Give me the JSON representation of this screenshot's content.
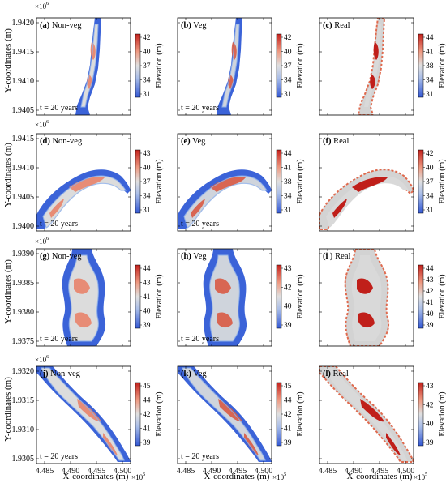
{
  "figure": {
    "y_axis_label": "Y-coordinates (m)",
    "x_axis_label": "X-coordinates (m)",
    "y_exponent": "×10",
    "y_exponent_power": "6",
    "x_exponent": "×10",
    "x_exponent_power": "5",
    "colorbar_label": "Elevation (m)",
    "time_label": "t = 20 years",
    "colors": {
      "low": "#3a62d6",
      "mid": "#d9d9d9",
      "high": "#c8251e",
      "frame": "#000000"
    }
  },
  "chart_data": [
    {
      "type": "heatmap",
      "label": "(a)",
      "label_title": "Non-veg",
      "row": 0,
      "col": 0,
      "shape": "narrow",
      "variant": 0,
      "show_time": true,
      "y_ticks": [
        "1.9420",
        "1.9415",
        "1.9410",
        "1.9405"
      ],
      "x_ticks": [],
      "colorbar_ticks": [
        "42",
        "40",
        "37",
        "34",
        "31"
      ],
      "value_range": [
        31,
        42
      ]
    },
    {
      "type": "heatmap",
      "label": "(b)",
      "label_title": "Veg",
      "row": 0,
      "col": 1,
      "shape": "narrow",
      "variant": 1,
      "show_time": true,
      "y_ticks": [],
      "x_ticks": [],
      "colorbar_ticks": [
        "42",
        "40",
        "37",
        "34",
        "31"
      ],
      "value_range": [
        31,
        42
      ]
    },
    {
      "type": "heatmap",
      "label": "(c)",
      "label_title": "Real",
      "row": 0,
      "col": 2,
      "shape": "narrow",
      "variant": 2,
      "show_time": false,
      "y_ticks": [],
      "x_ticks": [],
      "colorbar_ticks": [
        "44",
        "41",
        "38",
        "34",
        "31"
      ],
      "value_range": [
        31,
        44
      ]
    },
    {
      "type": "heatmap",
      "label": "(d)",
      "label_title": "Non-veg",
      "row": 1,
      "col": 0,
      "shape": "arc",
      "variant": 0,
      "show_time": true,
      "y_ticks": [
        "1.9415",
        "1.9410",
        "1.9405",
        "1.9400"
      ],
      "x_ticks": [],
      "colorbar_ticks": [
        "43",
        "40",
        "37",
        "34",
        "31"
      ],
      "value_range": [
        31,
        43
      ]
    },
    {
      "type": "heatmap",
      "label": "(e)",
      "label_title": "Veg",
      "row": 1,
      "col": 1,
      "shape": "arc",
      "variant": 1,
      "show_time": true,
      "y_ticks": [],
      "x_ticks": [],
      "colorbar_ticks": [
        "44",
        "41",
        "38",
        "34",
        "31"
      ],
      "value_range": [
        31,
        44
      ]
    },
    {
      "type": "heatmap",
      "label": "(f)",
      "label_title": "Real",
      "row": 1,
      "col": 2,
      "shape": "arc",
      "variant": 2,
      "show_time": false,
      "y_ticks": [],
      "x_ticks": [],
      "colorbar_ticks": [
        "42",
        "40",
        "37",
        "34",
        "31"
      ],
      "value_range": [
        31,
        42
      ]
    },
    {
      "type": "heatmap",
      "label": "(g)",
      "label_title": "Non-veg",
      "row": 2,
      "col": 0,
      "shape": "bulge",
      "variant": 0,
      "show_time": true,
      "y_ticks": [
        "1.9390",
        "1.9385",
        "1.9380",
        "1.9375"
      ],
      "x_ticks": [],
      "colorbar_ticks": [
        "44",
        "43",
        "41",
        "40",
        "39"
      ],
      "value_range": [
        39,
        44
      ]
    },
    {
      "type": "heatmap",
      "label": "(h)",
      "label_title": "Veg",
      "row": 2,
      "col": 1,
      "shape": "bulge",
      "variant": 1,
      "show_time": true,
      "y_ticks": [],
      "x_ticks": [],
      "colorbar_ticks": [
        "43",
        "42",
        "40",
        "39"
      ],
      "value_range": [
        39,
        43
      ]
    },
    {
      "type": "heatmap",
      "label": "(i )",
      "label_title": "Real",
      "row": 2,
      "col": 2,
      "shape": "bulge",
      "variant": 2,
      "show_time": false,
      "y_ticks": [],
      "x_ticks": [],
      "colorbar_ticks": [
        "44",
        "43",
        "42",
        "41",
        "40",
        "39"
      ],
      "value_range": [
        39,
        44
      ]
    },
    {
      "type": "heatmap",
      "label": "(j)",
      "label_title": "Non-veg",
      "row": 3,
      "col": 0,
      "shape": "diag",
      "variant": 0,
      "show_time": true,
      "y_ticks": [
        "1.9320",
        "1.9315",
        "1.9310",
        "1.9305"
      ],
      "x_ticks": [
        "4.485",
        "4.490",
        "4.495",
        "4.500"
      ],
      "colorbar_ticks": [
        "45",
        "44",
        "42",
        "41",
        "39"
      ],
      "value_range": [
        39,
        45
      ]
    },
    {
      "type": "heatmap",
      "label": "(k)",
      "label_title": "Veg",
      "row": 3,
      "col": 1,
      "shape": "diag",
      "variant": 1,
      "show_time": true,
      "y_ticks": [],
      "x_ticks": [
        "4.485",
        "4.490",
        "4.495",
        "4.500"
      ],
      "colorbar_ticks": [
        "45",
        "44",
        "42",
        "41",
        "39"
      ],
      "value_range": [
        39,
        45
      ]
    },
    {
      "type": "heatmap",
      "label": "(l)",
      "label_title": "Real",
      "row": 3,
      "col": 2,
      "shape": "diag",
      "variant": 2,
      "show_time": false,
      "y_ticks": [],
      "x_ticks": [
        "4.485",
        "4.490",
        "4.495",
        "4.500"
      ],
      "colorbar_ticks": [
        "43",
        "42",
        "40",
        "39"
      ],
      "value_range": [
        39,
        43
      ]
    }
  ]
}
